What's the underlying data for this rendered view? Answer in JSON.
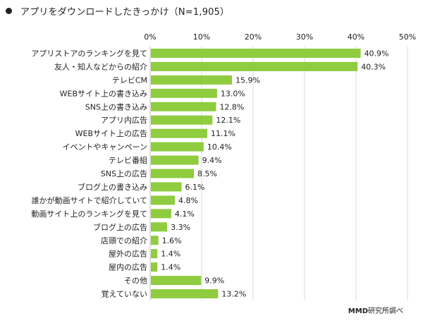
{
  "title": "アプリをダウンロードしたきっかけ（N=1,905）",
  "source_brand": "MMD",
  "source_suffix": "研究所調べ",
  "chart_data": {
    "type": "bar",
    "orientation": "horizontal",
    "title": "アプリをダウンロードしたきっかけ（N=1,905）",
    "xlim": [
      0,
      50
    ],
    "ticks": [
      "0%",
      "10%",
      "20%",
      "30%",
      "40%",
      "50%"
    ],
    "grid": true,
    "bar_color": "#8fcc3f",
    "categories": [
      "アプリストアのランキングを見て",
      "友人・知人などからの紹介",
      "テレビCM",
      "WEBサイト上の書き込み",
      "SNS上の書き込み",
      "アプリ内広告",
      "WEBサイト上の広告",
      "イベントやキャンペーン",
      "テレビ番組",
      "SNS上の広告",
      "ブログ上の書き込み",
      "誰かが動画サイトで紹介していて",
      "動画サイト上のランキングを見て",
      "ブログ上の広告",
      "店頭での紹介",
      "屋外の広告",
      "屋内の広告",
      "その他",
      "覚えていない"
    ],
    "values": [
      40.9,
      40.3,
      15.9,
      13.0,
      12.8,
      12.1,
      11.1,
      10.4,
      9.4,
      8.5,
      6.1,
      4.8,
      4.1,
      3.3,
      1.6,
      1.4,
      1.4,
      9.9,
      13.2
    ],
    "value_labels": [
      "40.9%",
      "40.3%",
      "15.9%",
      "13.0%",
      "12.8%",
      "12.1%",
      "11.1%",
      "10.4%",
      "9.4%",
      "8.5%",
      "6.1%",
      "4.8%",
      "4.1%",
      "3.3%",
      "1.6%",
      "1.4%",
      "1.4%",
      "9.9%",
      "13.2%"
    ]
  }
}
